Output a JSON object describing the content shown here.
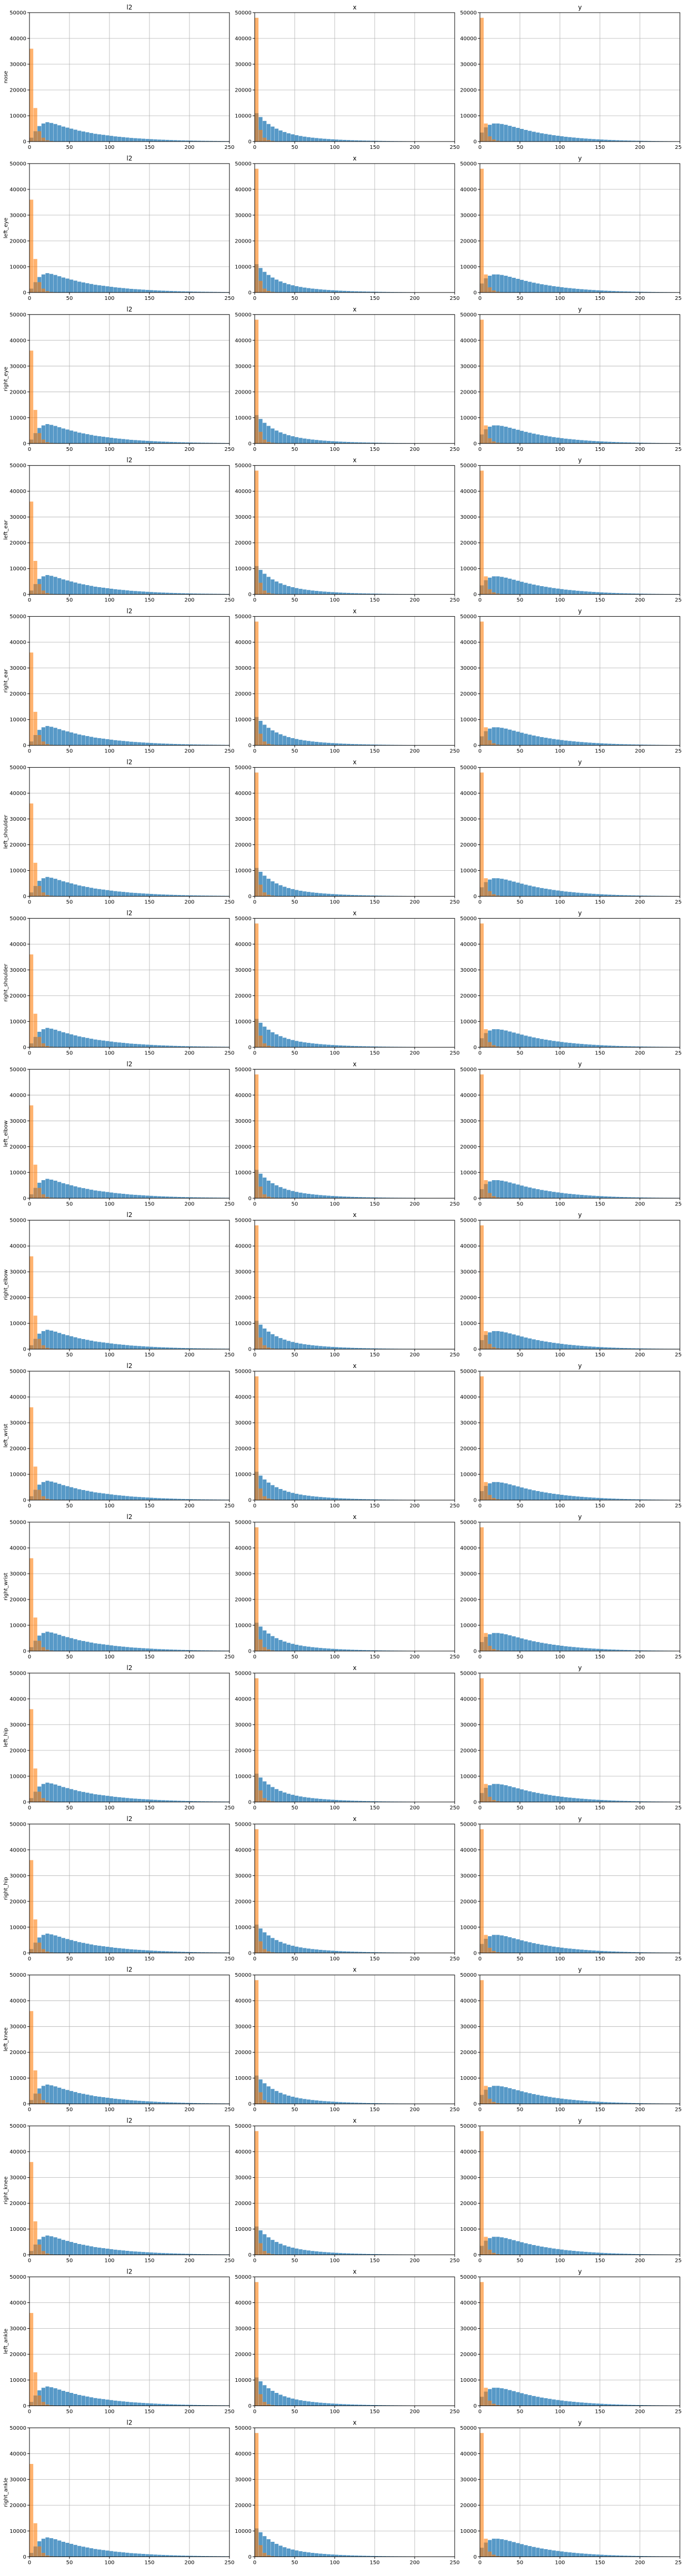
{
  "chart_data": {
    "type": "bar",
    "layout": {
      "rows": 17,
      "cols": 3
    },
    "histtype": "overlaid histograms",
    "column_titles": [
      "l2",
      "x",
      "y"
    ],
    "row_labels": [
      "nose",
      "left_eye",
      "right_eye",
      "left_ear",
      "right_ear",
      "left_shoulder",
      "right_shoulder",
      "left_elbow",
      "right_elbow",
      "left_wrist",
      "right_wrist",
      "left_hip",
      "right_hip",
      "left_knee",
      "right_knee",
      "left_ankle",
      "right_ankle"
    ],
    "xlim": [
      0,
      250
    ],
    "ylim": [
      0,
      50000
    ],
    "xticks": [
      0,
      50,
      100,
      150,
      200,
      250
    ],
    "yticks": [
      0,
      10000,
      20000,
      30000,
      40000,
      50000
    ],
    "grid": true,
    "colors": {
      "series_a": "#1f77b4",
      "series_b": "#ff7f0e"
    },
    "bin_width": 5,
    "bin_starts": [
      0,
      5,
      10,
      15,
      20,
      25,
      30,
      35,
      40,
      45,
      50,
      55,
      60,
      65,
      70,
      75,
      80,
      85,
      90,
      95,
      100,
      105,
      110,
      115,
      120,
      125,
      130,
      135,
      140,
      145,
      150,
      155,
      160,
      165,
      170,
      175,
      180,
      185,
      190,
      195,
      200,
      205,
      210,
      215,
      220,
      225,
      230,
      235,
      240,
      245
    ],
    "series": [
      {
        "column": "l2",
        "a": [
          1500,
          4000,
          6000,
          7000,
          7500,
          7200,
          6800,
          6300,
          5800,
          5400,
          5000,
          4600,
          4200,
          3900,
          3600,
          3300,
          3000,
          2800,
          2600,
          2400,
          2200,
          2000,
          1850,
          1700,
          1550,
          1400,
          1300,
          1200,
          1100,
          1000,
          920,
          840,
          760,
          700,
          640,
          580,
          530,
          480,
          440,
          400,
          370,
          340,
          310,
          280,
          260,
          240,
          220,
          200,
          180,
          160
        ],
        "b": [
          36000,
          13000,
          4000,
          1500,
          500,
          200,
          100,
          60,
          40,
          20
        ]
      },
      {
        "column": "x",
        "a": [
          11000,
          9500,
          8000,
          6800,
          5800,
          5000,
          4300,
          3700,
          3200,
          2800,
          2450,
          2150,
          1900,
          1700,
          1500,
          1350,
          1200,
          1080,
          970,
          870,
          780,
          700,
          630,
          570,
          510,
          460,
          420,
          380,
          340,
          310,
          280,
          250,
          225,
          200,
          180,
          160,
          145,
          130,
          115,
          100,
          90,
          80,
          70,
          60,
          50,
          40,
          35,
          30,
          25,
          20
        ],
        "b": [
          48000,
          4500,
          1500,
          600,
          250,
          100,
          50,
          20
        ]
      },
      {
        "column": "y",
        "a": [
          3500,
          5500,
          6500,
          7000,
          7000,
          6800,
          6500,
          6100,
          5700,
          5300,
          4900,
          4500,
          4150,
          3800,
          3500,
          3200,
          2950,
          2700,
          2450,
          2250,
          2050,
          1850,
          1700,
          1550,
          1400,
          1280,
          1160,
          1050,
          950,
          860,
          780,
          700,
          630,
          570,
          510,
          460,
          420,
          380,
          340,
          310,
          280,
          250,
          225,
          200,
          180,
          160,
          145,
          130,
          115,
          100
        ],
        "b": [
          48000,
          7000,
          2000,
          800,
          300,
          100,
          50,
          20
        ]
      }
    ]
  }
}
